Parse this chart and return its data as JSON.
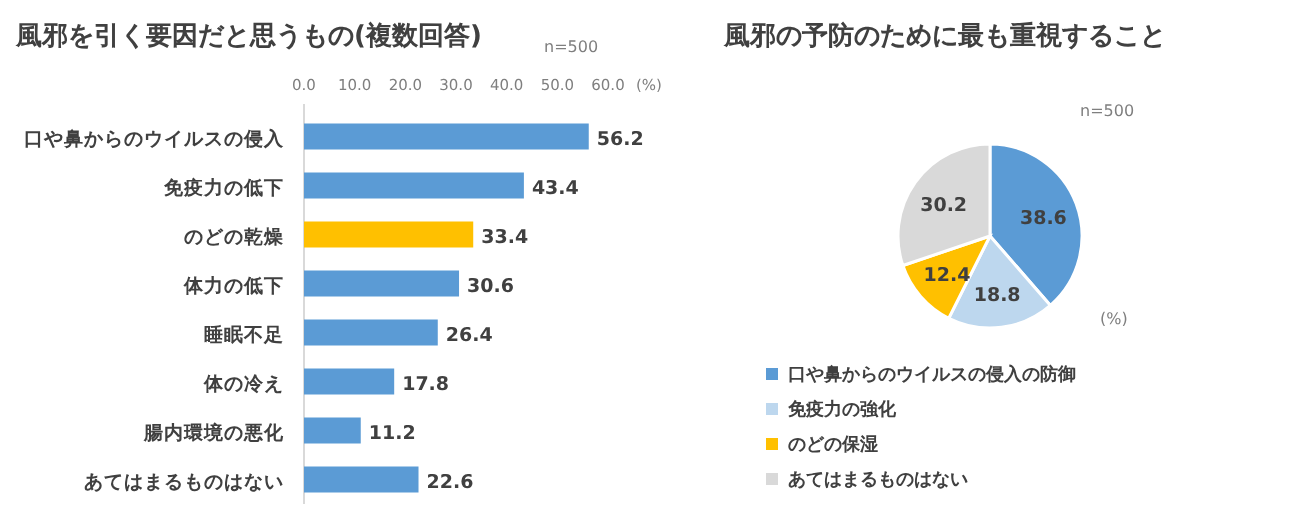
{
  "chart_data": [
    {
      "type": "bar",
      "orientation": "horizontal",
      "title": "風邪を引く要因だと思うもの(複数回答)",
      "xlabel": "(%)",
      "annotations": [
        "n=500"
      ],
      "categories": [
        "口や鼻からのウイルスの侵入",
        "免疫力の低下",
        "のどの乾燥",
        "体力の低下",
        "睡眠不足",
        "体の冷え",
        "腸内環境の悪化",
        "あてはまるものはない"
      ],
      "values": [
        56.2,
        43.4,
        33.4,
        30.6,
        26.4,
        17.8,
        11.2,
        22.6
      ],
      "colors": [
        "#5b9bd5",
        "#5b9bd5",
        "#ffc000",
        "#5b9bd5",
        "#5b9bd5",
        "#5b9bd5",
        "#5b9bd5",
        "#5b9bd5"
      ],
      "xlim": [
        0,
        60
      ],
      "xticks": [
        {
          "value": 0,
          "label": "0.0"
        },
        {
          "value": 10,
          "label": "10.0"
        },
        {
          "value": 20,
          "label": "20.0"
        },
        {
          "value": 30,
          "label": "30.0"
        },
        {
          "value": 40,
          "label": "40.0"
        },
        {
          "value": 50,
          "label": "50.0"
        },
        {
          "value": 60,
          "label": "60.0"
        }
      ],
      "data_labels": true
    },
    {
      "type": "pie",
      "title": "風邪の予防のために最も重視すること",
      "annotations": [
        "n=500",
        "(%)"
      ],
      "categories": [
        "口や鼻からのウイルスの侵入の防御",
        "免疫力の強化",
        "のどの保湿",
        "あてはまるものはない"
      ],
      "values": [
        38.6,
        18.8,
        12.4,
        30.2
      ],
      "colors": [
        "#5b9bd5",
        "#bdd7ee",
        "#ffc000",
        "#d9d9d9"
      ],
      "data_labels": true,
      "legend": "bottom"
    }
  ]
}
